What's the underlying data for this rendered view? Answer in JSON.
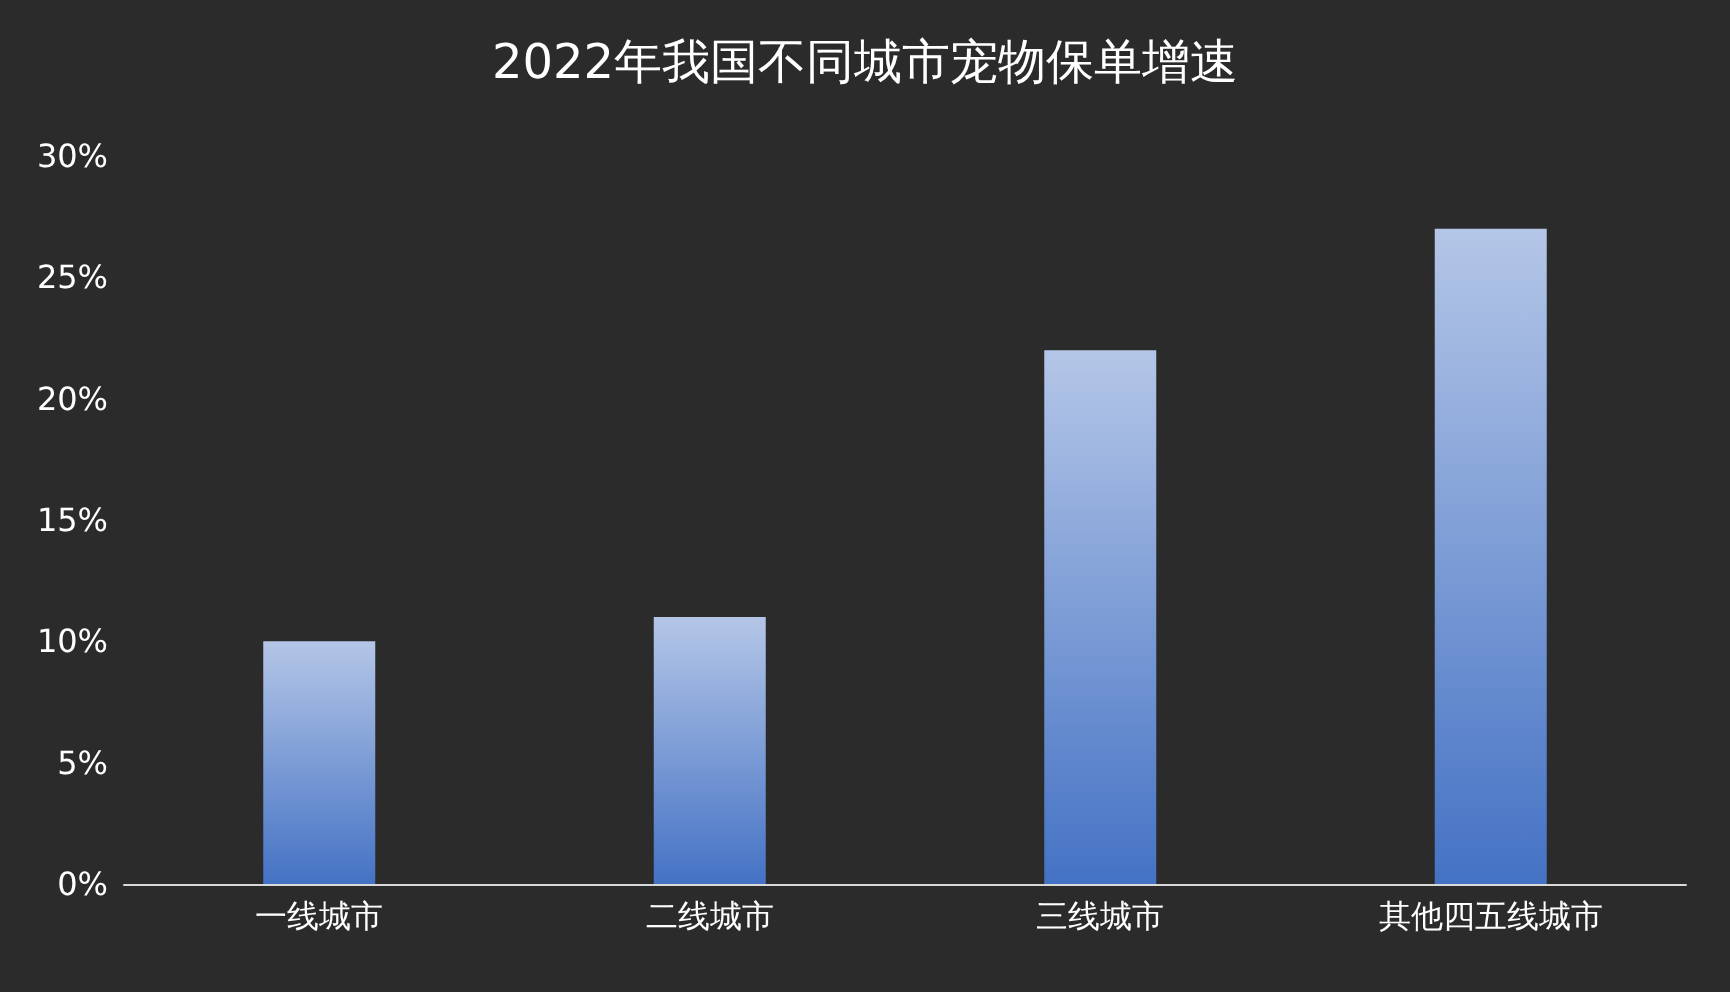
{
  "chart_data": {
    "type": "bar",
    "title": "2022年我国不同城市宠物保单增速",
    "categories": [
      "一线城市",
      "二线城市",
      "三线城市",
      "其他四五线城市"
    ],
    "values": [
      10,
      11,
      22,
      27
    ],
    "color": "#4472c4",
    "ylim": [
      0,
      30
    ],
    "yticks": [
      {
        "value": 0,
        "label": "0%"
      },
      {
        "value": 5,
        "label": "5%"
      },
      {
        "value": 10,
        "label": "10%"
      },
      {
        "value": 15,
        "label": "15%"
      },
      {
        "value": 20,
        "label": "20%"
      },
      {
        "value": 25,
        "label": "25%"
      },
      {
        "value": 30,
        "label": "30%"
      }
    ],
    "grid": false
  }
}
